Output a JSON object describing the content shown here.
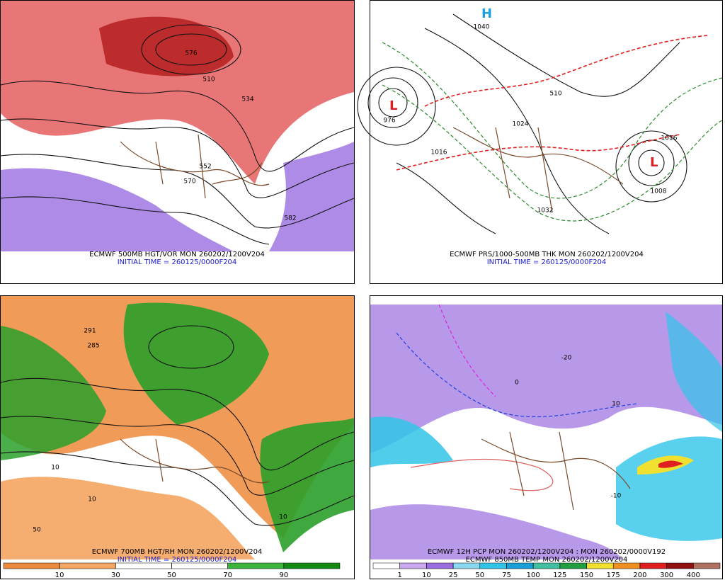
{
  "panels": [
    {
      "caption": "ECMWF 500MB HGT/VOR MON 260202/1200V204",
      "initial": "INITIAL TIME = 260125/0000F204",
      "labels": [
        "576",
        "510",
        "534",
        "552",
        "570",
        "582"
      ]
    },
    {
      "caption": "ECMWF PRS/1000-500MB THK MON 260202/1200V204",
      "initial": "INITIAL TIME = 260125/0000F204",
      "labels": [
        "1040",
        "976",
        "1016",
        "1024",
        "1032",
        "1008",
        "1016",
        "510"
      ]
    },
    {
      "caption": "ECMWF 700MB HGT/RH MON 260202/1200V204",
      "initial": "INITIAL TIME = 260125/0000F204",
      "labels": [
        "291",
        "285",
        "10",
        "10",
        "10",
        "50"
      ],
      "colorbar": {
        "ticks": [
          10,
          30,
          50,
          70,
          90
        ],
        "colors": [
          "#ee8a3c",
          "#f4a561",
          "#ffffff",
          "#ffffff",
          "#3cb43c",
          "#138a13"
        ]
      }
    },
    {
      "caption": "ECMWF 12H PCP MON 260202/1200V204 : MON 260202/0000V192",
      "initial": "ECMWF 850MB TEMP MON 260202/1200V204",
      "labels": [
        "-10",
        "0",
        "10",
        "-20"
      ],
      "colorbar": {
        "ticks": [
          1,
          10,
          25,
          50,
          75,
          100,
          125,
          150,
          175,
          200,
          300,
          400
        ],
        "colors": [
          "#ffffff",
          "#c9a7ee",
          "#9a6ee0",
          "#8ad8f0",
          "#30c4e8",
          "#1aa0d8",
          "#40c0a0",
          "#20a040",
          "#f0e030",
          "#f09020",
          "#e02020",
          "#901010",
          "#b07060"
        ]
      }
    }
  ]
}
